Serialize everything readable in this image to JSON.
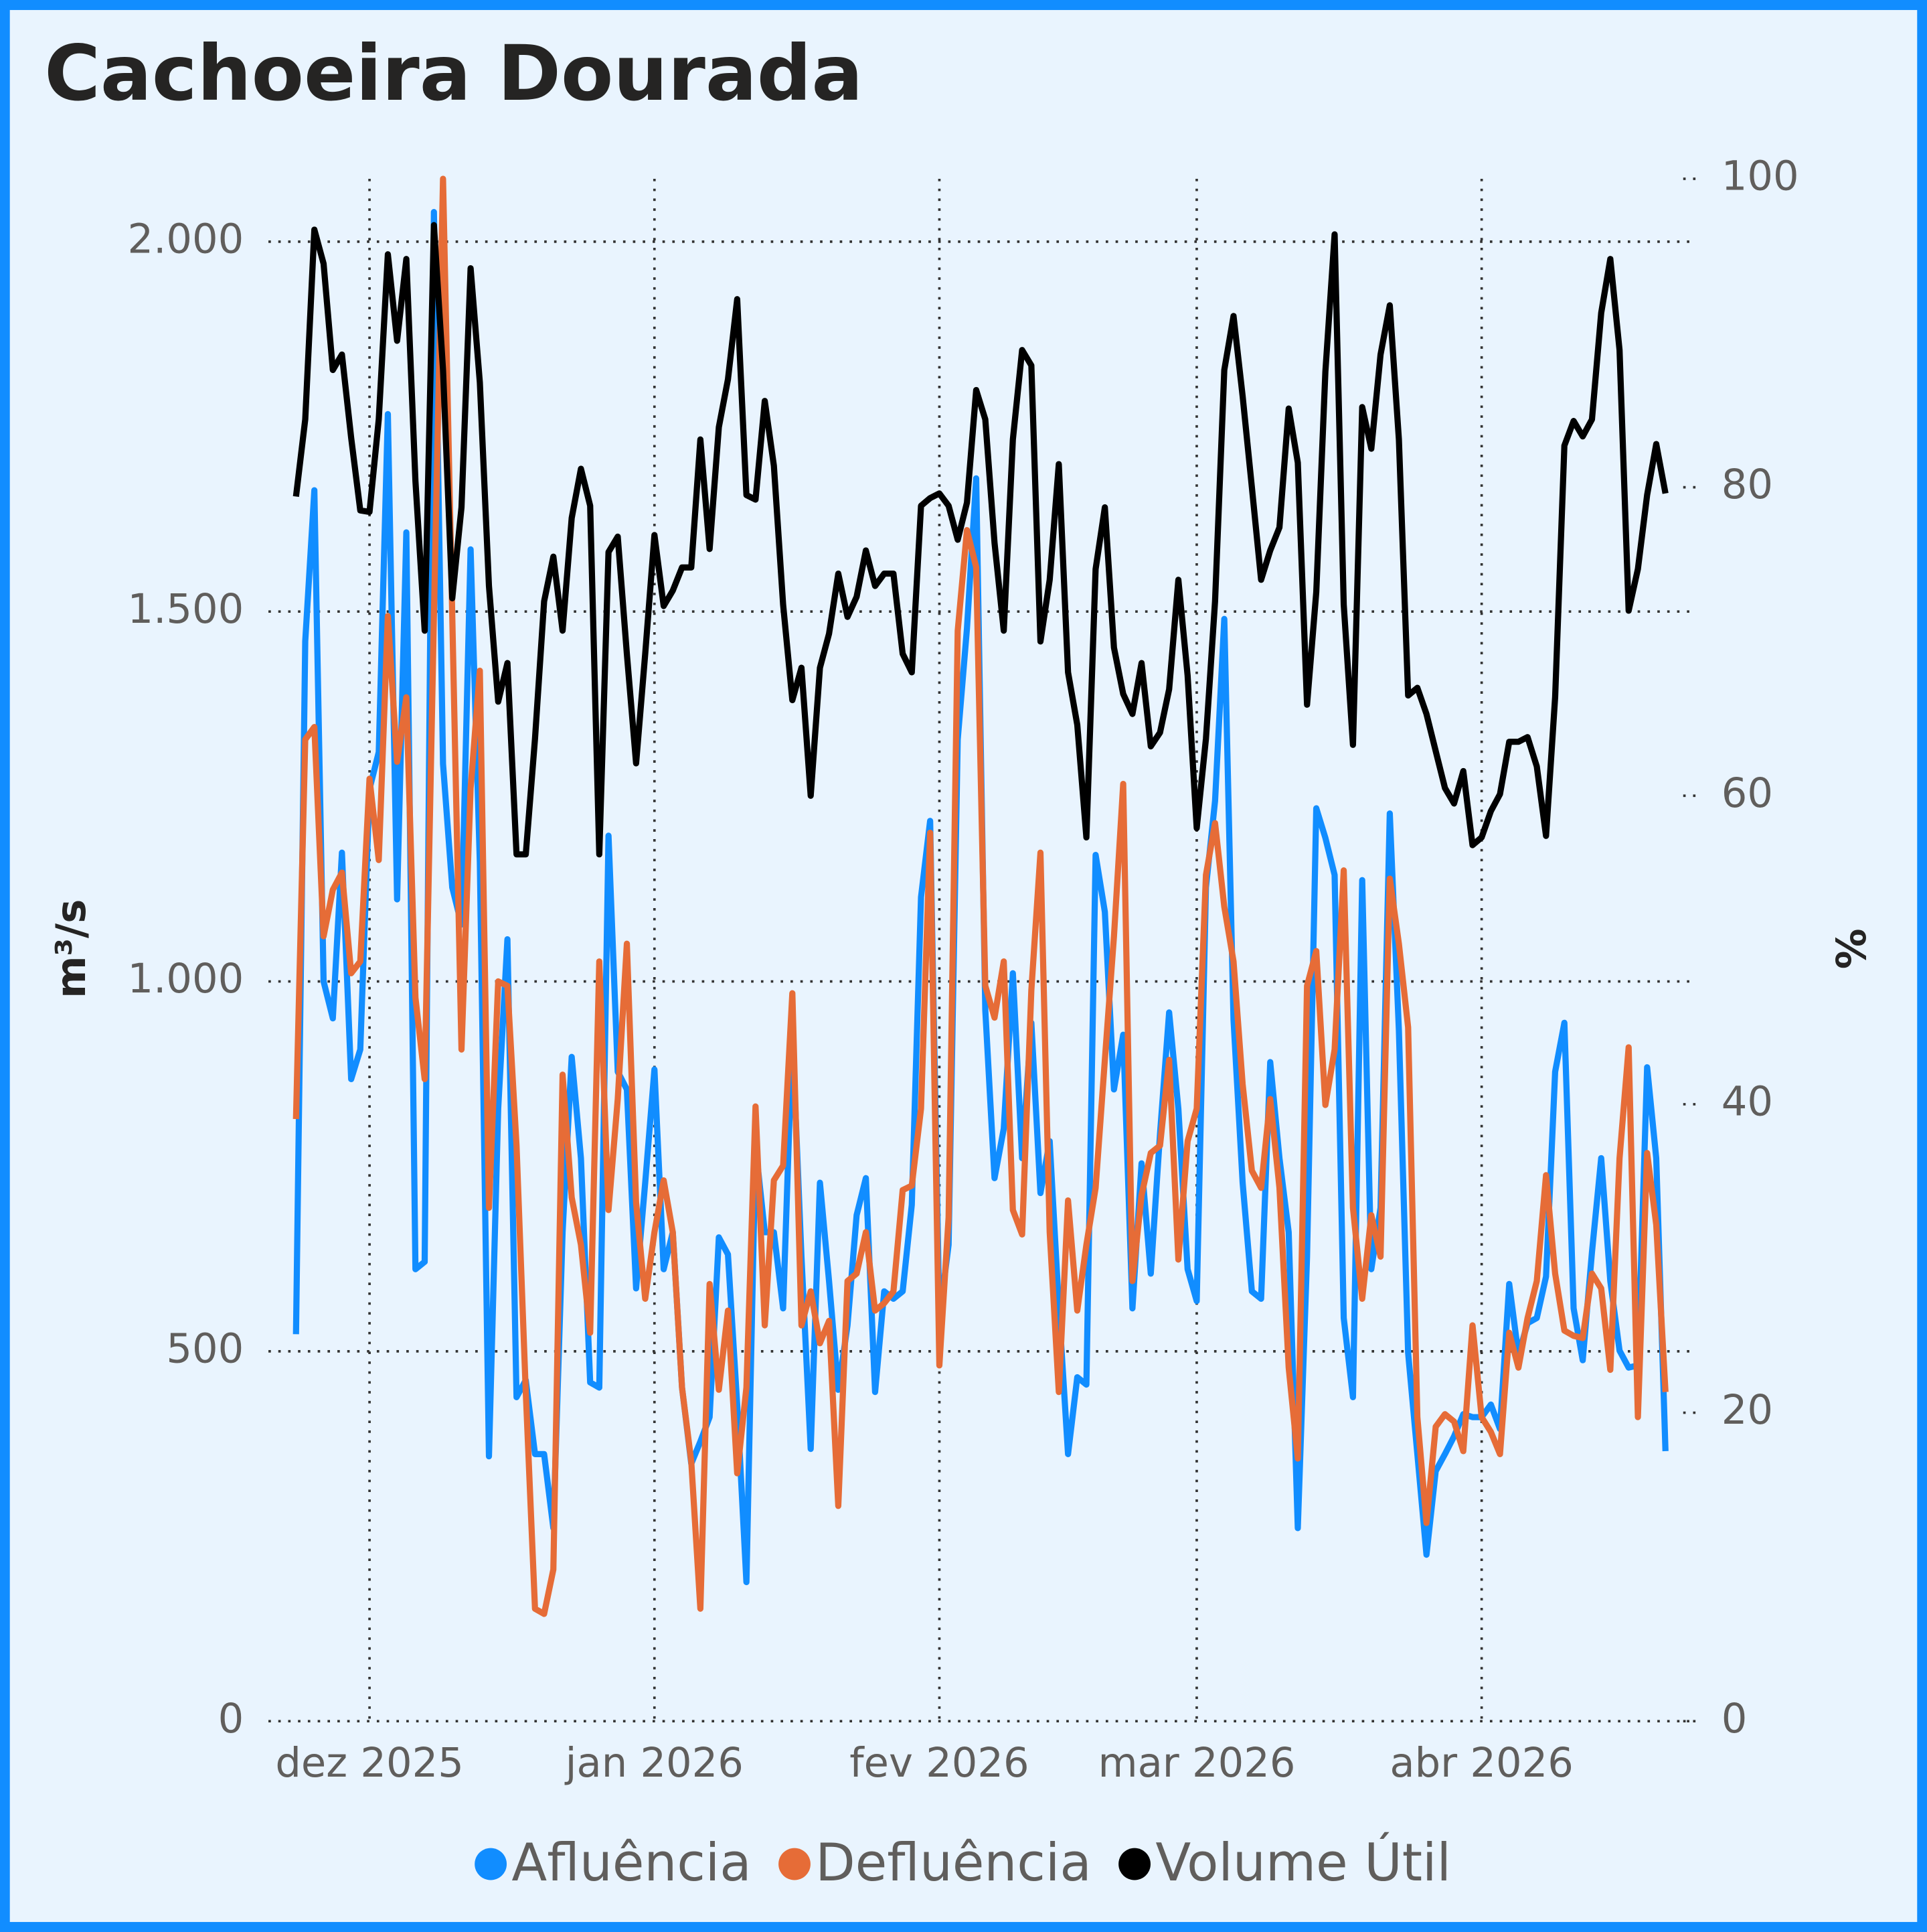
{
  "chart_data": {
    "type": "line",
    "title": "Cachoeira Dourada",
    "ylabel": "m³/s",
    "y2label": "%",
    "x": [
      "2025-11-23",
      "2025-11-24",
      "2025-11-25",
      "2025-11-26",
      "2025-11-27",
      "2025-11-28",
      "2025-11-29",
      "2025-11-30",
      "2025-12-01",
      "2025-12-02",
      "2025-12-03",
      "2025-12-04",
      "2025-12-05",
      "2025-12-06",
      "2025-12-07",
      "2025-12-08",
      "2025-12-09",
      "2025-12-10",
      "2025-12-11",
      "2025-12-12",
      "2025-12-13",
      "2025-12-14",
      "2025-12-15",
      "2025-12-16",
      "2025-12-17",
      "2025-12-18",
      "2025-12-19",
      "2025-12-20",
      "2025-12-21",
      "2025-12-22",
      "2025-12-23",
      "2025-12-24",
      "2025-12-25",
      "2025-12-26",
      "2025-12-27",
      "2025-12-28",
      "2025-12-29",
      "2025-12-30",
      "2025-12-31",
      "2026-01-01",
      "2026-01-02",
      "2026-01-03",
      "2026-01-04",
      "2026-01-05",
      "2026-01-06",
      "2026-01-07",
      "2026-01-08",
      "2026-01-09",
      "2026-01-10",
      "2026-01-11",
      "2026-01-12",
      "2026-01-13",
      "2026-01-14",
      "2026-01-15",
      "2026-01-16",
      "2026-01-17",
      "2026-01-18",
      "2026-01-19",
      "2026-01-20",
      "2026-01-21",
      "2026-01-22",
      "2026-01-23",
      "2026-01-24",
      "2026-01-25",
      "2026-01-26",
      "2026-01-27",
      "2026-01-28",
      "2026-01-29",
      "2026-01-30",
      "2026-01-31",
      "2026-02-01",
      "2026-02-02",
      "2026-02-03",
      "2026-02-04",
      "2026-02-05",
      "2026-02-06",
      "2026-02-07",
      "2026-02-08",
      "2026-02-09",
      "2026-02-10",
      "2026-02-11",
      "2026-02-12",
      "2026-02-13",
      "2026-02-14",
      "2026-02-15",
      "2026-02-16",
      "2026-02-17",
      "2026-02-18",
      "2026-02-19",
      "2026-02-20",
      "2026-02-21",
      "2026-02-22",
      "2026-02-23",
      "2026-02-24",
      "2026-02-25",
      "2026-02-26",
      "2026-02-27",
      "2026-02-28",
      "2026-03-01",
      "2026-03-02",
      "2026-03-03",
      "2026-03-04",
      "2026-03-05",
      "2026-03-06",
      "2026-03-07",
      "2026-03-08",
      "2026-03-09",
      "2026-03-10",
      "2026-03-11",
      "2026-03-12",
      "2026-03-13",
      "2026-03-14",
      "2026-03-15",
      "2026-03-16",
      "2026-03-17",
      "2026-03-18",
      "2026-03-19",
      "2026-03-20",
      "2026-03-21",
      "2026-03-22",
      "2026-03-23",
      "2026-03-24",
      "2026-03-25",
      "2026-03-26",
      "2026-03-27",
      "2026-03-28",
      "2026-03-29",
      "2026-03-30",
      "2026-03-31",
      "2026-04-01",
      "2026-04-02",
      "2026-04-03",
      "2026-04-04",
      "2026-04-05",
      "2026-04-06",
      "2026-04-07",
      "2026-04-08",
      "2026-04-09",
      "2026-04-10",
      "2026-04-11",
      "2026-04-12",
      "2026-04-13",
      "2026-04-14",
      "2026-04-15",
      "2026-04-16",
      "2026-04-17",
      "2026-04-18",
      "2026-04-19",
      "2026-04-20",
      "2026-04-21"
    ],
    "series": [
      {
        "name": "Afluência",
        "color": "#118DFF",
        "values": [
          523,
          1460,
          1664,
          1000,
          950,
          1174,
          868,
          908,
          1260,
          1310,
          1767,
          1111,
          1607,
          611,
          621,
          2040,
          1294,
          1127,
          1077,
          1584,
          1161,
          358,
          828,
          1057,
          438,
          461,
          361,
          361,
          261,
          661,
          898,
          761,
          458,
          451,
          1197,
          878,
          854,
          585,
          728,
          881,
          611,
          661,
          451,
          348,
          378,
          411,
          654,
          631,
          428,
          188,
          778,
          661,
          661,
          558,
          928,
          628,
          368,
          728,
          595,
          448,
          535,
          684,
          734,
          445,
          581,
          571,
          581,
          698,
          1114,
          1217,
          545,
          644,
          1327,
          1477,
          1680,
          961,
          734,
          801,
          1011,
          761,
          944,
          714,
          784,
          561,
          361,
          465,
          455,
          1171,
          1094,
          854,
          928,
          558,
          754,
          605,
          794,
          958,
          828,
          611,
          568,
          1127,
          1244,
          1490,
          948,
          728,
          581,
          571,
          891,
          761,
          661,
          261,
          628,
          1234,
          1194,
          1144,
          545,
          438,
          1137,
          611,
          694,
          1227,
          934,
          498,
          361,
          225,
          338,
          361,
          385,
          415,
          411,
          411,
          428,
          395,
          591,
          495,
          538,
          545,
          601,
          878,
          944,
          558,
          488,
          634,
          761,
          595,
          501,
          478,
          481,
          884,
          761,
          365
        ]
      },
      {
        "name": "Defluência",
        "color": "#E66C37",
        "values": [
          814,
          1327,
          1344,
          1061,
          1124,
          1147,
          1011,
          1027,
          1274,
          1164,
          1494,
          1297,
          1384,
          978,
          868,
          1494,
          2085,
          1494,
          908,
          1261,
          1420,
          694,
          1000,
          994,
          778,
          445,
          152,
          145,
          205,
          874,
          708,
          644,
          525,
          1027,
          691,
          841,
          1051,
          701,
          571,
          661,
          731,
          661,
          451,
          351,
          152,
          591,
          448,
          555,
          335,
          451,
          831,
          535,
          731,
          751,
          984,
          535,
          581,
          511,
          541,
          291,
          595,
          605,
          661,
          555,
          565,
          581,
          718,
          724,
          828,
          1201,
          481,
          681,
          1474,
          1610,
          1560,
          994,
          951,
          1027,
          691,
          658,
          988,
          1174,
          661,
          445,
          704,
          555,
          644,
          721,
          894,
          1061,
          1267,
          595,
          711,
          768,
          778,
          894,
          624,
          784,
          828,
          1144,
          1214,
          1101,
          1027,
          861,
          744,
          721,
          841,
          721,
          478,
          355,
          994,
          1041,
          833,
          908,
          1150,
          694,
          571,
          684,
          628,
          1139,
          1051,
          938,
          411,
          268,
          398,
          415,
          405,
          365,
          535,
          411,
          391,
          361,
          525,
          478,
          545,
          595,
          738,
          605,
          528,
          521,
          518,
          605,
          585,
          475,
          761,
          911,
          411,
          768,
          671,
          445
        ]
      },
      {
        "name": "Volume Útil",
        "color": "#000000",
        "axis": "y2",
        "values": [
          79.4,
          84.4,
          96.7,
          94.5,
          87.6,
          88.6,
          83.2,
          78.5,
          78.4,
          84.4,
          95.1,
          89.5,
          94.8,
          80.4,
          70.7,
          97.0,
          87.6,
          72.8,
          78.7,
          94.2,
          86.8,
          73.6,
          66.1,
          68.6,
          56.2,
          56.2,
          63.7,
          72.6,
          75.5,
          70.7,
          78.0,
          81.2,
          78.8,
          56.2,
          75.8,
          76.8,
          69.2,
          62.1,
          69.2,
          76.9,
          72.3,
          73.3,
          74.8,
          74.8,
          83.1,
          76.0,
          83.9,
          87.0,
          92.2,
          79.5,
          79.2,
          85.6,
          81.4,
          72.4,
          66.2,
          68.3,
          60.0,
          68.3,
          70.5,
          74.4,
          71.6,
          72.9,
          75.9,
          73.6,
          74.4,
          74.4,
          69.2,
          68.0,
          78.8,
          79.3,
          79.6,
          78.8,
          76.6,
          79.0,
          86.3,
          84.4,
          76.4,
          70.7,
          83.1,
          88.9,
          87.9,
          70.0,
          74.0,
          81.5,
          68.0,
          64.6,
          57.3,
          74.7,
          78.7,
          69.6,
          66.6,
          65.3,
          68.6,
          63.2,
          64.1,
          66.9,
          74.0,
          67.8,
          57.9,
          63.7,
          72.6,
          87.6,
          91.1,
          85.9,
          80.0,
          74.0,
          75.9,
          77.4,
          85.1,
          81.6,
          65.9,
          73.2,
          87.5,
          96.4,
          72.4,
          63.3,
          85.2,
          82.5,
          88.6,
          91.8,
          83.1,
          66.5,
          67.0,
          65.3,
          62.9,
          60.5,
          59.5,
          61.6,
          56.8,
          57.3,
          59.0,
          60.1,
          63.5,
          63.5,
          63.8,
          61.9,
          57.4,
          66.4,
          82.7,
          84.3,
          83.3,
          84.4,
          91.3,
          94.8,
          88.9,
          72.0,
          74.7,
          79.5,
          82.8,
          79.6
        ]
      }
    ],
    "xlim": [
      "2025-11-20",
      "2026-04-24"
    ],
    "xticks": [
      {
        "value": "2025-12-01",
        "label": "dez 2025"
      },
      {
        "value": "2026-01-01",
        "label": "jan 2026"
      },
      {
        "value": "2026-02-01",
        "label": "fev 2026"
      },
      {
        "value": "2026-03-01",
        "label": "mar 2026"
      },
      {
        "value": "2026-04-01",
        "label": "abr 2026"
      }
    ],
    "ylim": [
      0,
      2085
    ],
    "yticks": [
      0,
      500,
      {
        "value": 1000,
        "label": "1.000"
      },
      {
        "value": 1500,
        "label": "1.500"
      },
      {
        "value": 2000,
        "label": "2.000"
      }
    ],
    "y2lim": [
      0,
      100
    ],
    "y2ticks": [
      0,
      20,
      40,
      60,
      80,
      100
    ],
    "grid": true
  }
}
